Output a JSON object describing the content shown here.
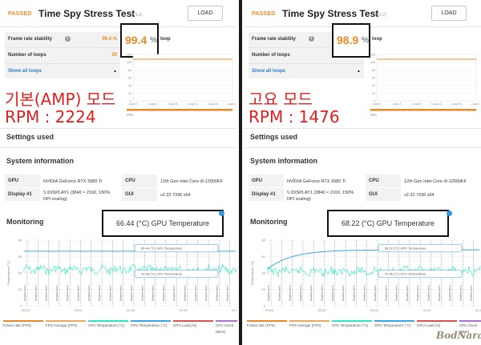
{
  "panels": [
    {
      "passed": "PASSED",
      "title": "Time Spy Stress Test",
      "version": "(V1.2)",
      "load_button": "LOAD",
      "stability_label": "Frame rate stability",
      "stability_value": "99.4 %",
      "loops_label": "Number of loops",
      "loops_value": "20",
      "show_all": "Show all loops",
      "callout_value": "99.4",
      "callout_unit": "%",
      "loop_text": "loop",
      "mode_line1": "기본(AMP) 모드",
      "mode_line2": "RPM : 2224",
      "settings_used": "Settings used",
      "system_information": "System information",
      "gpu_label": "GPU",
      "gpu_value": "NVIDIA GeForce RTX 3080 Ti",
      "display_label": "Display #1",
      "display_value": "\\\\.\\DISPLAY1 (3840 × 2160, 150% DPI scaling)",
      "cpu_label": "CPU",
      "cpu_value": "12th Gen Intel Core i9-12900KF",
      "gui_label": "GUI",
      "gui_value": "v2.22.7336 s64",
      "monitoring": "Monitoring",
      "gpu_temp_callout": "66.44 (°C) GPU Temperature",
      "tooltip_gpu_temp": "66.44 (°C) GPU Temperature",
      "tooltip_cpu_temp": "43.98 (°C) CPU Temperature",
      "gpu_temp_level": 66.44,
      "cpu_temp_level": 43.98,
      "gpu_temp_start": 66.44
    },
    {
      "passed": "PASSED",
      "title": "Time Spy Stress Test",
      "version": "(V1.2)",
      "load_button": "LOAD",
      "stability_label": "Frame rate stability",
      "stability_value": "98.9 %",
      "loops_label": "Number of loops",
      "loops_value": "20",
      "show_all": "Show all loops",
      "callout_value": "98.9",
      "callout_unit": "%",
      "loop_text": "loop",
      "mode_line1": "고요 모드",
      "mode_line2": "RPM : 1476",
      "settings_used": "Settings used",
      "system_information": "System information",
      "gpu_label": "GPU",
      "gpu_value": "NVIDIA GeForce RTX 3080 Ti",
      "display_label": "Display #1",
      "display_value": "\\\\.\\DISPLAY1 (3840 × 2160, 150% DPI scaling)",
      "cpu_label": "CPU",
      "cpu_value": "12th Gen Intel Core i9-12900KF",
      "gui_label": "GUI",
      "gui_value": "v2.22.7336 s64",
      "monitoring": "Monitoring",
      "gpu_temp_callout": "68.22 (°C) GPU Temperature",
      "tooltip_gpu_temp": "68.22 (°C) GPU Temperature",
      "tooltip_cpu_temp": "41.96 (°C) CPU Temperature",
      "gpu_temp_level": 68.22,
      "cpu_temp_level": 41.96,
      "gpu_temp_start": 45
    }
  ],
  "mini_chart": {
    "x_ticks": [
      "Loop 0",
      "Loop 4",
      "Loop 8",
      "Loop 12",
      "Loop 16",
      "Loop 20"
    ],
    "y_ticks": [
      "120",
      "100",
      "80",
      "60",
      "40",
      "20",
      "0"
    ],
    "axis_label": "FPS"
  },
  "monitoring_chart": {
    "x_ticks": [
      "00:00",
      "00:20",
      "00:40",
      "01:00",
      "01:20"
    ],
    "y_ticks": [
      "80",
      "60",
      "40",
      "20",
      "0"
    ],
    "y_label": "Temperature (°C)",
    "marker_label": "Graphics test 1",
    "ylim": [
      0,
      80
    ]
  },
  "legend": [
    {
      "label": "Frame rate (FPS)",
      "color": "#e88a2a"
    },
    {
      "label": "FPS Average (FPS)",
      "color": "#f0a860"
    },
    {
      "label": "CPU Temperature (°C)",
      "color": "#2ee6c0"
    },
    {
      "label": "GPU Temperature (°C)",
      "color": "#3aa6e8"
    },
    {
      "label": "GPU Load (%)",
      "color": "#e05050"
    },
    {
      "label": "CPU Clock",
      "color": "#b070d0"
    }
  ],
  "legend_extra": "(MHz)",
  "watermark": "BodNara"
}
